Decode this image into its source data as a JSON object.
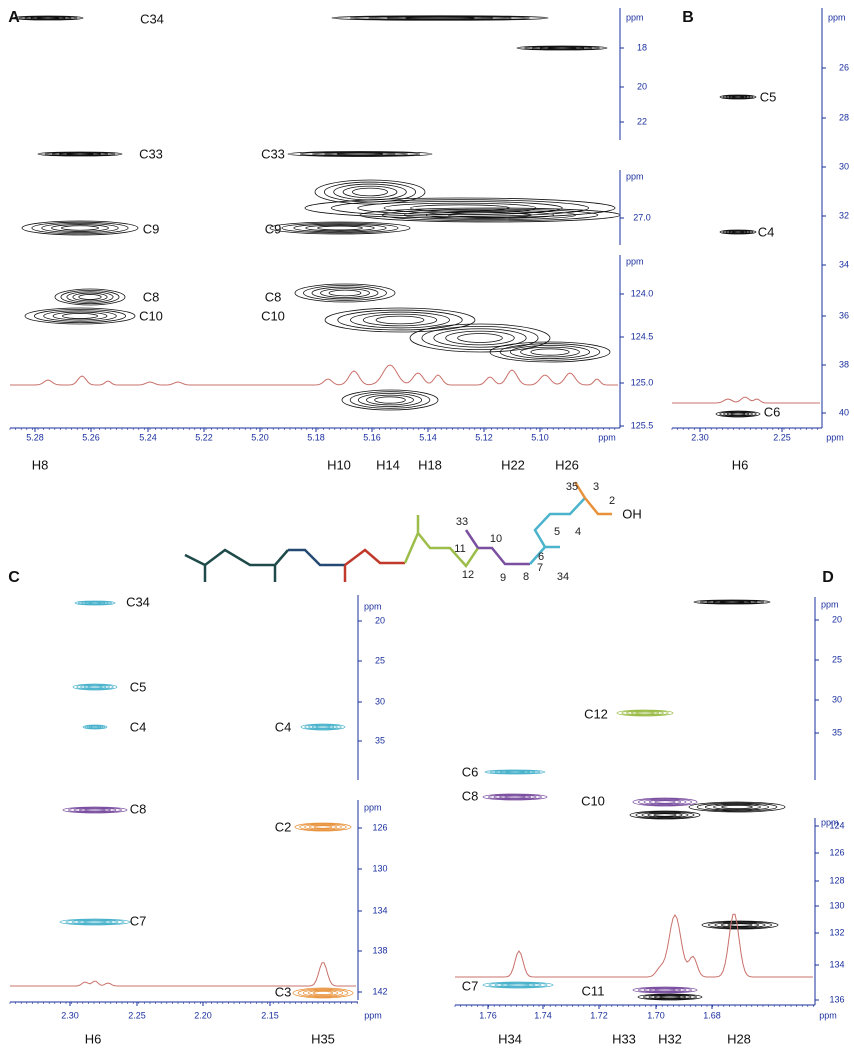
{
  "panels": [
    {
      "label": "A",
      "y_axes": [
        {
          "unit": "ppm",
          "ticks": [
            "18",
            "20",
            "22"
          ]
        },
        {
          "unit": "ppm",
          "ticks": [
            "27.0"
          ]
        },
        {
          "unit": "ppm",
          "ticks": [
            "124.0",
            "124.5",
            "125.0",
            "125.5"
          ]
        }
      ],
      "x_axis": {
        "unit": "ppm",
        "ticks": [
          "5.28",
          "5.26",
          "5.24",
          "5.22",
          "5.20",
          "5.18",
          "5.16",
          "5.14",
          "5.12",
          "5.10"
        ]
      },
      "peak_labels": [
        "C34",
        "C33",
        "C33",
        "C9",
        "C9",
        "C8",
        "C10",
        "C8",
        "C10"
      ],
      "proton_labels": [
        "H8",
        "H10",
        "H14",
        "H18",
        "H22",
        "H26"
      ]
    },
    {
      "label": "B",
      "y_axes": [
        {
          "unit": "ppm",
          "ticks": [
            "26",
            "28",
            "30",
            "32",
            "34",
            "36",
            "38",
            "40"
          ]
        }
      ],
      "x_axis": {
        "unit": "ppm",
        "ticks": [
          "2.30",
          "2.25"
        ]
      },
      "peak_labels": [
        "C5",
        "C4",
        "C6"
      ],
      "proton_labels": [
        "H6"
      ]
    },
    {
      "label": "C",
      "y_axes": [
        {
          "unit": "ppm",
          "ticks": [
            "20",
            "25",
            "30",
            "35"
          ]
        },
        {
          "unit": "ppm",
          "ticks": [
            "126",
            "130",
            "134",
            "138",
            "142"
          ]
        }
      ],
      "x_axis": {
        "unit": "ppm",
        "ticks": [
          "2.30",
          "2.25",
          "2.20",
          "2.15"
        ]
      },
      "peak_labels": [
        "C34",
        "C5",
        "C4",
        "C4",
        "C8",
        "C2",
        "C7",
        "C3"
      ],
      "proton_labels": [
        "H6",
        "H35"
      ]
    },
    {
      "label": "D",
      "y_axes": [
        {
          "unit": "ppm",
          "ticks": [
            "20",
            "25",
            "30",
            "35"
          ]
        },
        {
          "unit": "ppm",
          "ticks": [
            "124",
            "126",
            "128",
            "130",
            "132",
            "134",
            "136"
          ]
        }
      ],
      "x_axis": {
        "unit": "ppm",
        "ticks": [
          "1.76",
          "1.74",
          "1.72",
          "1.70",
          "1.68"
        ]
      },
      "peak_labels": [
        "C12",
        "C6",
        "C8",
        "C10",
        "C7",
        "C11"
      ],
      "proton_labels": [
        "H34",
        "H33",
        "H32",
        "H28"
      ]
    }
  ],
  "structure": {
    "atom_numbers": [
      "35",
      "3",
      "2",
      "4",
      "5",
      "6",
      "7",
      "34",
      "33",
      "11",
      "10",
      "12",
      "9",
      "8"
    ],
    "group": "OH"
  }
}
